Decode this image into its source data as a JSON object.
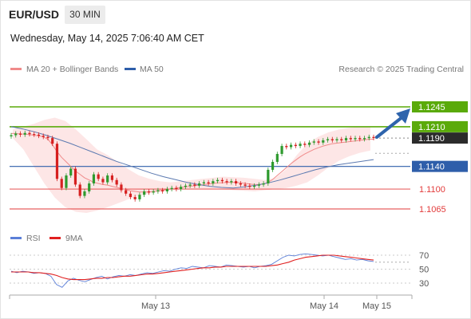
{
  "header": {
    "symbol": "EUR/USD",
    "timeframe": "30 MIN",
    "datetime": "Wednesday, May 14, 2025 7:06:40 AM CET"
  },
  "legend": {
    "ma20": "MA 20 + Bollinger Bands",
    "ma50": "MA 50",
    "rsi": "RSI",
    "ma9": "9MA",
    "credit": "Research © 2025 Trading Central"
  },
  "colors": {
    "green_level": "#5aaa0a",
    "blue_level": "#2e5eaa",
    "red_level": "#e23a3a",
    "bollinger_fill": "#fde2e2",
    "ma20": "#f08a8a",
    "ma50": "#5b79b0",
    "up_candle": "#2e9a2e",
    "down_candle": "#d62020",
    "arrow": "#2e64ac",
    "rsi": "#5b7fd8",
    "ma9": "#e02020"
  },
  "chart_data": [
    {
      "type": "candlestick",
      "symbol": "EUR/USD",
      "timeframe": "30 MIN",
      "ylim": [
        1.104,
        1.1265
      ],
      "current_price": "1.1190",
      "levels": [
        {
          "label": "1.1245",
          "value": 1.1245,
          "kind": "resistance",
          "color": "#5aaa0a"
        },
        {
          "label": "1.1210",
          "value": 1.121,
          "kind": "resistance",
          "color": "#5aaa0a"
        },
        {
          "label": "1.1140",
          "value": 1.114,
          "kind": "pivot",
          "color": "#2e5eaa"
        },
        {
          "label": "1.1100",
          "value": 1.11,
          "kind": "support",
          "color": "#e23a3a"
        },
        {
          "label": "1.1065",
          "value": 1.1065,
          "kind": "support",
          "color": "#e23a3a"
        }
      ],
      "x_ticks": [
        "May 13",
        "May 14",
        "May 15"
      ],
      "closes": [
        1.1195,
        1.1198,
        1.1196,
        1.1199,
        1.1197,
        1.1196,
        1.1194,
        1.1192,
        1.119,
        1.118,
        1.1118,
        1.1102,
        1.1124,
        1.1136,
        1.1108,
        1.1088,
        1.1096,
        1.111,
        1.1126,
        1.1118,
        1.1112,
        1.1124,
        1.1116,
        1.1108,
        1.1098,
        1.1092,
        1.1086,
        1.1082,
        1.109,
        1.1096,
        1.1094,
        1.1096,
        1.1098,
        1.1096,
        1.11,
        1.1102,
        1.11,
        1.1104,
        1.1106,
        1.1108,
        1.1106,
        1.111,
        1.1112,
        1.111,
        1.1114,
        1.1116,
        1.1114,
        1.1112,
        1.1114,
        1.111,
        1.1108,
        1.1106,
        1.1104,
        1.1106,
        1.1108,
        1.111,
        1.1134,
        1.1148,
        1.1162,
        1.1176,
        1.1174,
        1.1178,
        1.1176,
        1.118,
        1.1178,
        1.1182,
        1.1184,
        1.1182,
        1.1186,
        1.1188,
        1.1186,
        1.1188,
        1.1186,
        1.119,
        1.1188,
        1.119,
        1.1188,
        1.119,
        1.1192,
        1.119
      ],
      "ma20": [
        1.1198,
        1.1198,
        1.1197,
        1.1197,
        1.1196,
        1.1195,
        1.1194,
        1.1192,
        1.1188,
        1.1178,
        1.1166,
        1.1156,
        1.1148,
        1.114,
        1.1132,
        1.1126,
        1.112,
        1.1116,
        1.1112,
        1.111,
        1.1108,
        1.1107,
        1.1105,
        1.1103,
        1.1101,
        1.1099,
        1.1097,
        1.1096,
        1.1095,
        1.1095,
        1.1095,
        1.1096,
        1.1097,
        1.1098,
        1.1099,
        1.11,
        1.1102,
        1.1103,
        1.1104,
        1.1105,
        1.1106,
        1.1107,
        1.1108,
        1.1109,
        1.111,
        1.1111,
        1.1111,
        1.1112,
        1.1112,
        1.1112,
        1.1111,
        1.111,
        1.1109,
        1.1108,
        1.1108,
        1.1109,
        1.1112,
        1.1117,
        1.1124,
        1.1131,
        1.1138,
        1.1145,
        1.1151,
        1.1157,
        1.1162,
        1.1166,
        1.117,
        1.1173,
        1.1176,
        1.1178,
        1.118,
        1.1181,
        1.1182,
        1.1183,
        1.1184,
        1.1185,
        1.1186,
        1.1187,
        1.1188,
        1.1188
      ],
      "ma50": [
        1.121,
        1.1206,
        1.1201,
        1.1195,
        1.1188,
        1.1181,
        1.1173,
        1.1165,
        1.1157,
        1.1149,
        1.1142,
        1.1135,
        1.1128,
        1.1122,
        1.1117,
        1.1112,
        1.1108,
        1.1105,
        1.1103,
        1.1102,
        1.1104,
        1.1107,
        1.1111,
        1.1116,
        1.1122,
        1.1128,
        1.1134,
        1.1139,
        1.1143,
        1.1146,
        1.1149,
        1.1152
      ],
      "bb_upper": [
        1.1205,
        1.121,
        1.1215,
        1.1222,
        1.1226,
        1.122,
        1.1205,
        1.1188,
        1.117,
        1.116,
        1.1148,
        1.1135,
        1.1124,
        1.1118,
        1.1114,
        1.1112,
        1.1114,
        1.1116,
        1.1118,
        1.112,
        1.1122,
        1.1121,
        1.112,
        1.1118,
        1.1116,
        1.112,
        1.1135,
        1.116,
        1.118,
        1.1192,
        1.12,
        1.1205,
        1.1208,
        1.121,
        1.121
      ],
      "bb_lower": [
        1.119,
        1.117,
        1.114,
        1.111,
        1.1085,
        1.1068,
        1.106,
        1.1058,
        1.1062,
        1.1068,
        1.1075,
        1.1082,
        1.1088,
        1.1092,
        1.1095,
        1.1098,
        1.11,
        1.11,
        1.11,
        1.11,
        1.1099,
        1.1098,
        1.1097,
        1.1096,
        1.1098,
        1.11,
        1.1102,
        1.1106,
        1.1112,
        1.1124,
        1.1138,
        1.115,
        1.1158,
        1.1164,
        1.1168
      ]
    },
    {
      "type": "line",
      "title": "",
      "ylim": [
        20,
        80
      ],
      "y_ticks": [
        "70",
        "50",
        "30"
      ],
      "series": [
        {
          "name": "RSI",
          "values": [
            47,
            45,
            47,
            46,
            44,
            45,
            44,
            40,
            28,
            24,
            33,
            37,
            34,
            32,
            35,
            38,
            40,
            36,
            39,
            41,
            40,
            42,
            41,
            43,
            45,
            44,
            46,
            48,
            47,
            50,
            52,
            51,
            54,
            53,
            52,
            55,
            54,
            53,
            56,
            55,
            54,
            53,
            54,
            52,
            54,
            55,
            57,
            62,
            67,
            70,
            69,
            71,
            72,
            71,
            70,
            69,
            70,
            68,
            66,
            64,
            65,
            63,
            64,
            62,
            61
          ]
        },
        {
          "name": "9MA",
          "values": [
            46,
            46,
            46,
            46,
            45,
            45,
            44,
            43,
            41,
            38,
            36,
            35,
            35,
            35,
            36,
            37,
            37,
            38,
            38,
            39,
            40,
            40,
            41,
            42,
            43,
            43,
            44,
            45,
            46,
            47,
            48,
            49,
            50,
            51,
            52,
            52,
            53,
            53,
            54,
            54,
            54,
            54,
            54,
            54,
            54,
            54,
            55,
            56,
            58,
            60,
            63,
            65,
            67,
            68,
            69,
            70,
            70,
            70,
            69,
            68,
            67,
            66,
            65,
            64,
            63
          ]
        }
      ]
    }
  ]
}
